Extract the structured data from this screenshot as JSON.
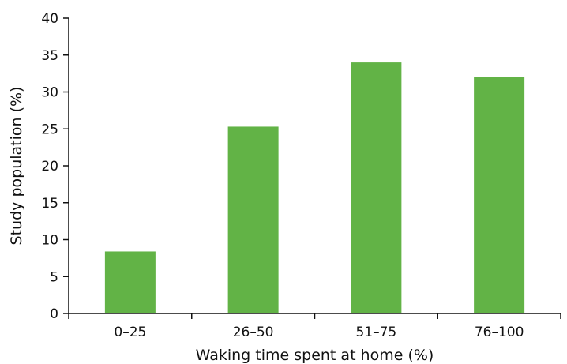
{
  "chart_data": {
    "type": "bar",
    "title": "",
    "xlabel": "Waking time spent at home (%)",
    "ylabel": "Study population (%)",
    "categories": [
      "0–25",
      "26–50",
      "51–75",
      "76–100"
    ],
    "values": [
      8.4,
      25.3,
      34.0,
      32.0
    ],
    "ylim": [
      0,
      40
    ],
    "yticks": [
      0,
      5,
      10,
      15,
      20,
      25,
      30,
      35,
      40
    ],
    "bar_color": "#62b346",
    "grid": false,
    "legend": "none"
  }
}
